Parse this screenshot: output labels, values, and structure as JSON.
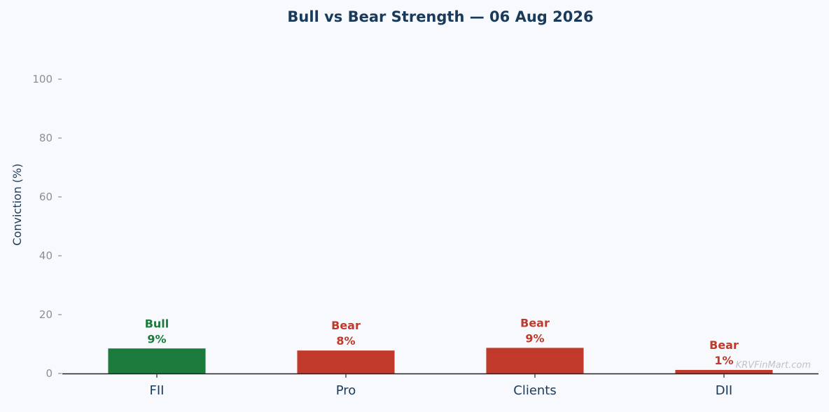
{
  "colors": {
    "background": "#f7f9fc",
    "title": "#1a3a5c",
    "axis_label": "#1a3a5c",
    "tick_label_y": "#8a8f96",
    "tick_label_x": "#1a3a5c",
    "bull": "#1b7a3c",
    "bear": "#c0392b",
    "axis_line": "#222222",
    "watermark": "#bfc4ca"
  },
  "watermark": "KRVFinMart.com",
  "chart_data": {
    "type": "bar",
    "title": "Bull vs Bear Strength — 06 Aug 2026",
    "xlabel": "",
    "ylabel": "Conviction (%)",
    "ylim": [
      0,
      110
    ],
    "yticks": [
      0,
      20,
      40,
      60,
      80,
      100
    ],
    "grid": false,
    "categories": [
      "FII",
      "Pro",
      "Clients",
      "DII"
    ],
    "values": [
      8.5,
      7.8,
      8.7,
      1.2
    ],
    "sentiment": [
      "Bull",
      "Bear",
      "Bear",
      "Bear"
    ],
    "labels": [
      "9%",
      "8%",
      "9%",
      "1%"
    ]
  }
}
